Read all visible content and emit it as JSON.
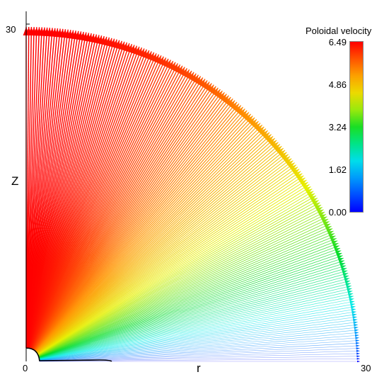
{
  "chart_data": {
    "type": "vector_field",
    "title": "",
    "xlabel": "r",
    "ylabel": "Z",
    "xlim": [
      0,
      30
    ],
    "ylim": [
      0,
      30
    ],
    "x_tick_labels": [
      "0",
      "30"
    ],
    "y_tick_labels": [
      "30"
    ],
    "colorbar": {
      "title": "Poloidal velocity",
      "min": 0.0,
      "max": 6.49,
      "tick_labels": [
        "6.49",
        "4.86",
        "3.24",
        "1.62",
        "0.00"
      ],
      "colormap": "rainbow (blue-cyan-green-yellow-orange-red)"
    },
    "field": {
      "description": "radial outflow vectors on quarter disk of radius 30",
      "outer_radius": 30,
      "inner_boundary_radius": 1.2,
      "polar_velocity": 6.49,
      "equatorial_velocity": 0.0,
      "contour_color": "#000000"
    }
  }
}
